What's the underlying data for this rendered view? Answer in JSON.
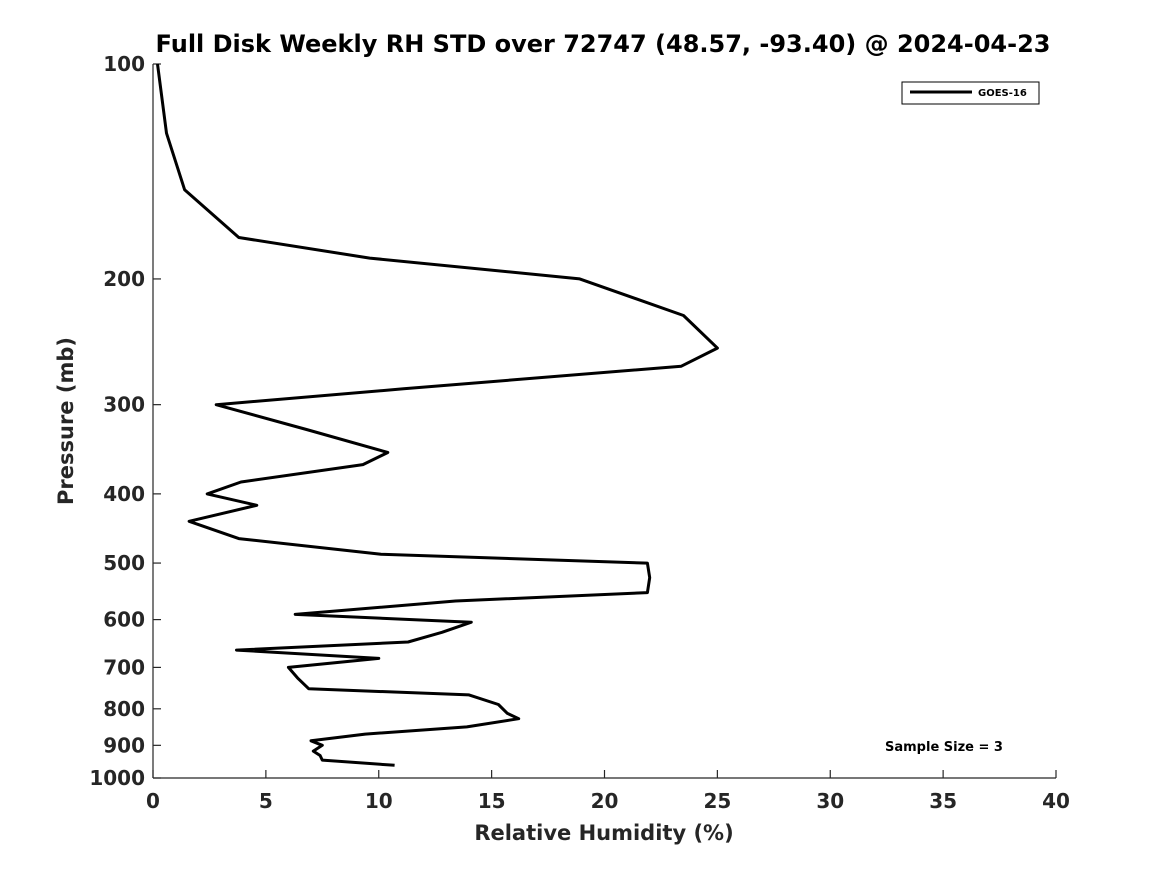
{
  "chart_data": {
    "type": "line",
    "title": "Full Disk Weekly RH STD over 72747 (48.57, -93.40) @ 2024-04-23",
    "xlabel": "Relative Humidity (%)",
    "ylabel": "Pressure (mb)",
    "xlim": [
      0,
      40
    ],
    "ylim": [
      100,
      1000
    ],
    "yscale": "log",
    "y_reversed": true,
    "x_ticks": [
      0,
      5,
      10,
      15,
      20,
      25,
      30,
      35,
      40
    ],
    "y_ticks": [
      100,
      200,
      300,
      400,
      500,
      600,
      700,
      800,
      900,
      1000
    ],
    "grid": false,
    "legend_position": "top-right",
    "series": [
      {
        "name": "GOES-16",
        "color": "#000000",
        "points": [
          [
            0.2,
            100
          ],
          [
            0.6,
            125
          ],
          [
            1.4,
            150
          ],
          [
            3.8,
            175
          ],
          [
            9.6,
            187
          ],
          [
            18.9,
            200
          ],
          [
            23.5,
            225
          ],
          [
            25.0,
            250
          ],
          [
            23.4,
            265
          ],
          [
            11.1,
            285
          ],
          [
            2.8,
            300
          ],
          [
            6.8,
            325
          ],
          [
            10.4,
            350
          ],
          [
            9.3,
            364
          ],
          [
            3.9,
            385
          ],
          [
            2.4,
            400
          ],
          [
            4.6,
            415
          ],
          [
            1.6,
            437
          ],
          [
            3.8,
            462
          ],
          [
            10.1,
            486
          ],
          [
            21.9,
            500
          ],
          [
            22.0,
            524
          ],
          [
            21.9,
            550
          ],
          [
            13.4,
            565
          ],
          [
            6.3,
            590
          ],
          [
            14.1,
            605
          ],
          [
            12.8,
            625
          ],
          [
            11.3,
            645
          ],
          [
            3.7,
            662
          ],
          [
            10.0,
            680
          ],
          [
            6.0,
            700
          ],
          [
            6.4,
            724
          ],
          [
            6.9,
            750
          ],
          [
            14.0,
            765
          ],
          [
            15.3,
            789
          ],
          [
            15.7,
            812
          ],
          [
            16.2,
            826
          ],
          [
            13.9,
            848
          ],
          [
            9.4,
            868
          ],
          [
            7.0,
            887
          ],
          [
            7.5,
            900
          ],
          [
            7.1,
            917
          ],
          [
            7.4,
            930
          ],
          [
            7.5,
            944
          ],
          [
            10.7,
            960
          ]
        ]
      }
    ],
    "annotations": [
      "Sample Size = 3"
    ]
  }
}
